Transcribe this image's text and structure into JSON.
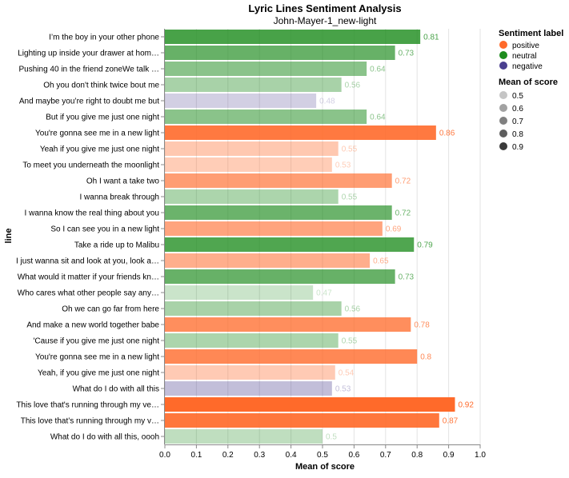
{
  "chart_data": {
    "type": "bar",
    "orientation": "horizontal",
    "title": "Lyric Lines Sentiment Analysis",
    "subtitle": "John-Mayer-1_new-light",
    "xlabel": "Mean of score",
    "ylabel": "line",
    "xlim": [
      0,
      1
    ],
    "xticks": [
      "0.0",
      "0.1",
      "0.2",
      "0.3",
      "0.4",
      "0.5",
      "0.6",
      "0.7",
      "0.8",
      "0.9",
      "1.0"
    ],
    "grid": true,
    "legend_position": "right",
    "color_legend": {
      "title": "Sentiment label",
      "entries": [
        {
          "label": "positive",
          "color": "#ff6a2a"
        },
        {
          "label": "neutral",
          "color": "#1e8c1e"
        },
        {
          "label": "negative",
          "color": "#4a3f8f"
        }
      ]
    },
    "opacity_legend": {
      "title": "Mean of score",
      "entries": [
        "0.5",
        "0.6",
        "0.7",
        "0.8",
        "0.9"
      ]
    },
    "bars": [
      {
        "line": "I’m the boy in your other phone",
        "value": 0.81,
        "label": "0.81",
        "sentiment": "neutral"
      },
      {
        "line": "Lighting up inside your drawer at hom…",
        "value": 0.73,
        "label": "0.73",
        "sentiment": "neutral"
      },
      {
        "line": "Pushing 40 in the friend zoneWe talk …",
        "value": 0.64,
        "label": "0.64",
        "sentiment": "neutral"
      },
      {
        "line": "Oh you don't think twice bout me",
        "value": 0.56,
        "label": "0.56",
        "sentiment": "neutral"
      },
      {
        "line": "And maybe you’re right to doubt me but",
        "value": 0.48,
        "label": "0.48",
        "sentiment": "negative"
      },
      {
        "line": "But if you give me just one night",
        "value": 0.64,
        "label": "0.64",
        "sentiment": "neutral"
      },
      {
        "line": "You're gonna see me in a new light",
        "value": 0.86,
        "label": "0.86",
        "sentiment": "positive"
      },
      {
        "line": "Yeah if you give me just one night",
        "value": 0.55,
        "label": "0.55",
        "sentiment": "positive"
      },
      {
        "line": "To meet you underneath the moonlight",
        "value": 0.53,
        "label": "0.53",
        "sentiment": "positive"
      },
      {
        "line": "Oh I want a take two",
        "value": 0.72,
        "label": "0.72",
        "sentiment": "positive"
      },
      {
        "line": "I wanna break through",
        "value": 0.55,
        "label": "0.55",
        "sentiment": "neutral"
      },
      {
        "line": "I wanna know the real thing about you",
        "value": 0.72,
        "label": "0.72",
        "sentiment": "neutral"
      },
      {
        "line": "So I can see you in a new light",
        "value": 0.69,
        "label": "0.69",
        "sentiment": "positive"
      },
      {
        "line": "Take a ride up to Malibu",
        "value": 0.79,
        "label": "0.79",
        "sentiment": "neutral"
      },
      {
        "line": "I just wanna sit and look at you, look a…",
        "value": 0.65,
        "label": "0.65",
        "sentiment": "positive"
      },
      {
        "line": "What would it matter if your friends kn…",
        "value": 0.73,
        "label": "0.73",
        "sentiment": "neutral"
      },
      {
        "line": "Who cares what other people say any…",
        "value": 0.47,
        "label": "0.47",
        "sentiment": "neutral"
      },
      {
        "line": "Oh we can go far from here",
        "value": 0.56,
        "label": "0.56",
        "sentiment": "neutral"
      },
      {
        "line": "And make a new world together babe",
        "value": 0.78,
        "label": "0.78",
        "sentiment": "positive"
      },
      {
        "line": "'Cause if you give me just one night",
        "value": 0.55,
        "label": "0.55",
        "sentiment": "neutral"
      },
      {
        "line": "You're gonna see me in a new light",
        "value": 0.8,
        "label": "0.8",
        "sentiment": "positive"
      },
      {
        "line": "Yeah, if you give me just one night",
        "value": 0.54,
        "label": "0.54",
        "sentiment": "positive"
      },
      {
        "line": "What do I do with all this",
        "value": 0.53,
        "label": "0.53",
        "sentiment": "negative"
      },
      {
        "line": "This love that's running through my ve…",
        "value": 0.92,
        "label": "0.92",
        "sentiment": "positive"
      },
      {
        "line": "This love that’s running through my v…",
        "value": 0.87,
        "label": "0.87",
        "sentiment": "positive"
      },
      {
        "line": "What do I do with all this, oooh",
        "value": 0.5,
        "label": "0.5",
        "sentiment": "neutral"
      }
    ]
  }
}
